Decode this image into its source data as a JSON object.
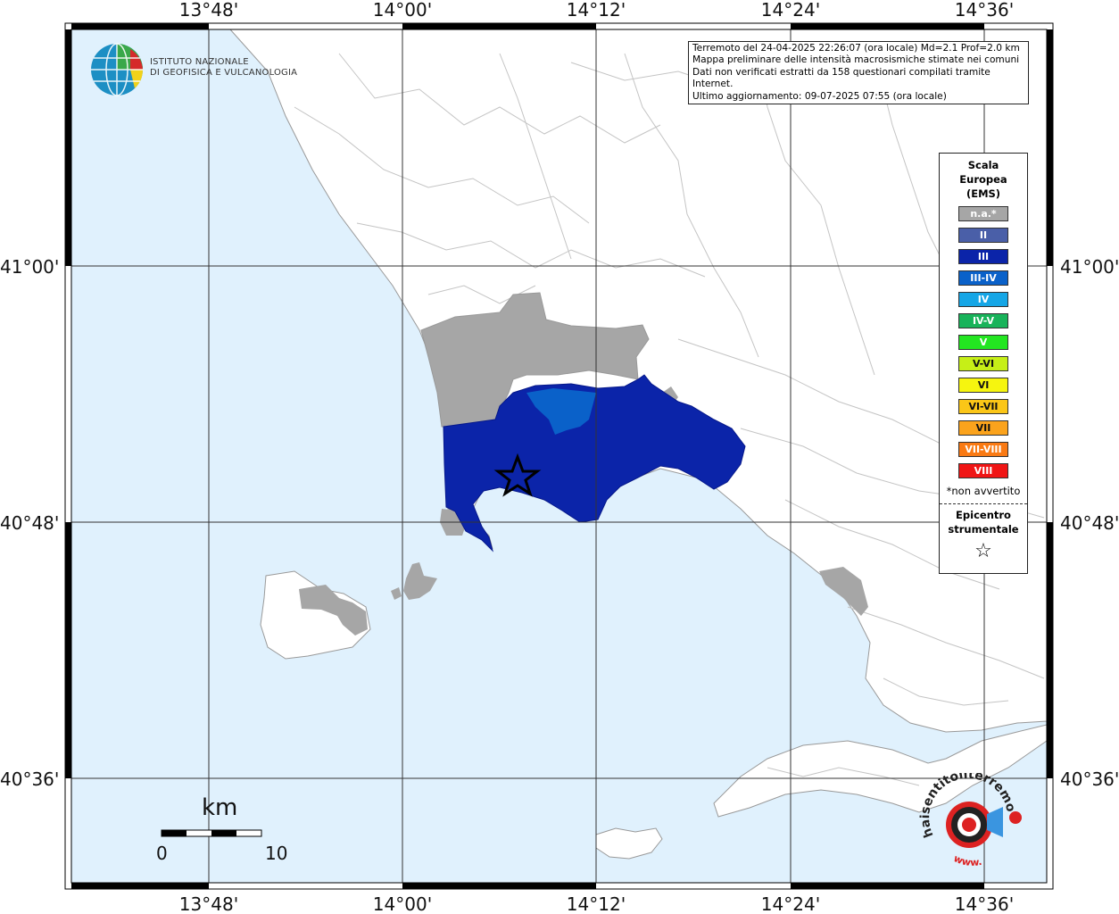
{
  "axes": {
    "top_lon": [
      "13°48'",
      "14°00'",
      "14°12'",
      "14°24'",
      "14°36'"
    ],
    "bottom_lon": [
      "13°48'",
      "14°00'",
      "14°12'",
      "14°24'",
      "14°36'"
    ],
    "left_lat": [
      "41°00'",
      "40°48'",
      "40°36'"
    ],
    "right_lat": [
      "41°00'",
      "40°48'",
      "40°36'"
    ]
  },
  "header": {
    "org_line1": "ISTITUTO NAZIONALE",
    "org_line2": "DI GEOFISICA E VULCANOLOGIA"
  },
  "info": {
    "line1": "Terremoto del 24-04-2025 22:26:07 (ora locale) Md=2.1 Prof=2.0 km",
    "line2": "Mappa preliminare delle intensità macrosismiche stimate nei comuni",
    "line3": "Dati non verificati estratti da 158 questionari compilati tramite Internet.",
    "line4": "Ultimo aggiornamento: 09-07-2025 07:55 (ora locale)"
  },
  "legend": {
    "title1": "Scala",
    "title2": "Europea",
    "title3": "(EMS)",
    "items": [
      {
        "label": "n.a.*",
        "color": "#a6a6a6"
      },
      {
        "label": "II",
        "color": "#4a5fa8"
      },
      {
        "label": "III",
        "color": "#0b24a9"
      },
      {
        "label": "III-IV",
        "color": "#0a61c9"
      },
      {
        "label": "IV",
        "color": "#15a6e6"
      },
      {
        "label": "IV-V",
        "color": "#18b35a"
      },
      {
        "label": "V",
        "color": "#23e621"
      },
      {
        "label": "V-VI",
        "color": "#c6ef17"
      },
      {
        "label": "VI",
        "color": "#f6f50f"
      },
      {
        "label": "VI-VII",
        "color": "#fbc617"
      },
      {
        "label": "VII",
        "color": "#fba31c"
      },
      {
        "label": "VII-VIII",
        "color": "#fa7a13"
      },
      {
        "label": "VIII",
        "color": "#f01515"
      }
    ],
    "note": "*non avvertito",
    "epicentre1": "Epicentro",
    "epicentre2": "strumentale",
    "epicentre_symbol": "☆"
  },
  "scalebar": {
    "unit": "km",
    "start": "0",
    "end": "10"
  },
  "footer_logo": {
    "text": "haisentitoilterremoto.it",
    "text2": "www."
  },
  "colors": {
    "sea": "#e0f1fd",
    "land": "#ffffff",
    "na": "#a6a6a6",
    "int_iii": "#0b24a9",
    "int_iiiiv": "#0a61c9"
  }
}
